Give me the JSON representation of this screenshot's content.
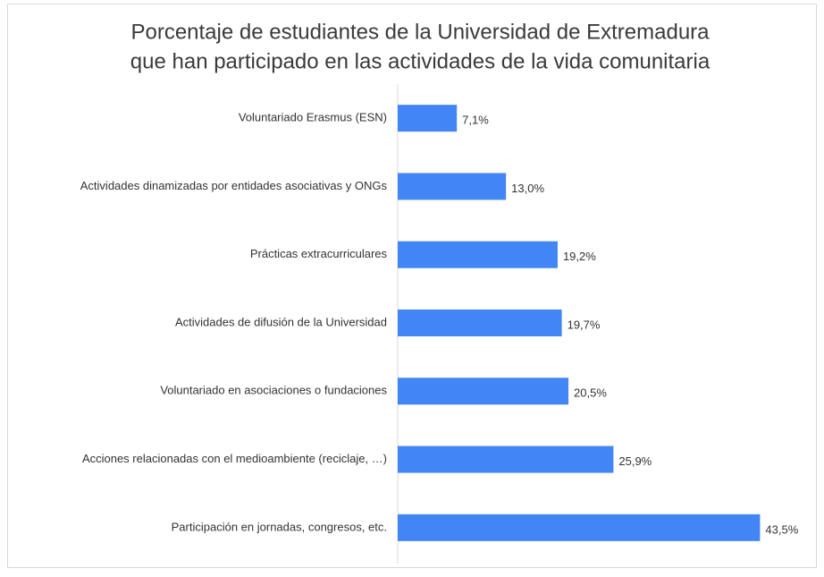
{
  "chart_data": {
    "type": "barh",
    "title": [
      "Porcentaje de estudiantes de la Universidad de Extremadura",
      "que han participado en las actividades de la vida comunitaria"
    ],
    "categories": [
      "Voluntariado Erasmus (ESN)",
      "Actividades dinamizadas por entidades asociativas y ONGs",
      "Prácticas extracurriculares",
      "Actividades de difusión de la Universidad",
      "Voluntariado en asociaciones o fundaciones",
      "Acciones relacionadas con el medioambiente (reciclaje, …)",
      "Participación en jornadas, congresos, etc."
    ],
    "values": [
      7.1,
      13.0,
      19.2,
      19.7,
      20.5,
      25.9,
      43.5
    ],
    "value_labels": [
      "7,1%",
      "13,0%",
      "19,2%",
      "19,7%",
      "20,5%",
      "25,9%",
      "43,5%"
    ],
    "color": "#4285f4",
    "xlim": [
      0,
      50
    ]
  }
}
